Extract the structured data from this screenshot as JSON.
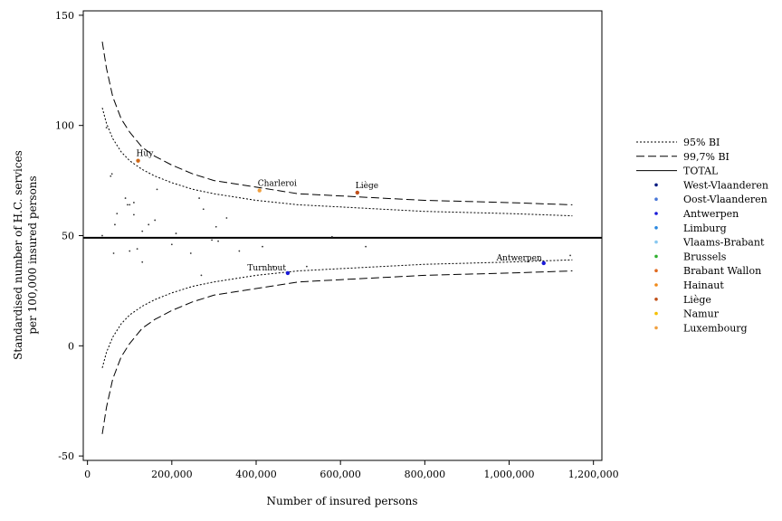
{
  "chart_data": {
    "type": "scatter",
    "title": "",
    "xlabel": "Number of insured persons",
    "ylabel_lines": [
      "Standardised number of H.C. services",
      "per 100,000 insured persons"
    ],
    "xlim": [
      -10000,
      1220000
    ],
    "ylim": [
      -52,
      152
    ],
    "xticks": [
      0,
      200000,
      400000,
      600000,
      800000,
      1000000,
      1200000
    ],
    "xtick_labels": [
      "0",
      "200,000",
      "400,000",
      "600,000",
      "800,000",
      "1,000,000",
      "1,200,000"
    ],
    "yticks": [
      -50,
      0,
      50,
      100,
      150
    ],
    "ytick_labels": [
      "-50",
      "0",
      "50",
      "100",
      "150"
    ],
    "grid": false,
    "legend_position": "right",
    "total_value": 49,
    "funnel_curves": [
      {
        "name": "95% BI",
        "style": "dotted",
        "x": [
          35000,
          45000,
          60000,
          80000,
          100000,
          130000,
          160000,
          200000,
          250000,
          300000,
          400000,
          500000,
          600000,
          700000,
          800000,
          900000,
          1000000,
          1150000
        ],
        "upper": [
          108,
          101,
          94,
          88,
          84,
          80,
          77,
          74,
          71,
          69,
          66,
          64,
          63,
          62,
          61,
          60.5,
          60,
          59
        ],
        "lower": [
          -10,
          -3,
          4,
          10,
          14,
          18,
          21,
          24,
          27,
          29,
          32,
          34,
          35,
          36,
          37,
          37.5,
          38,
          39
        ]
      },
      {
        "name": "99,7% BI",
        "style": "dashed",
        "x": [
          35000,
          45000,
          60000,
          80000,
          100000,
          130000,
          160000,
          200000,
          250000,
          300000,
          400000,
          500000,
          600000,
          700000,
          800000,
          900000,
          1000000,
          1150000
        ],
        "upper": [
          138,
          126,
          113,
          103,
          97,
          90,
          86,
          82,
          78,
          75,
          72,
          69,
          68,
          67,
          66,
          65.5,
          65,
          64
        ],
        "lower": [
          -40,
          -28,
          -15,
          -5,
          1,
          8,
          12,
          16,
          20,
          23,
          26,
          29,
          30,
          31,
          32,
          32.5,
          33,
          34
        ]
      }
    ],
    "series": [
      {
        "name": "West-Vlaanderen",
        "color": "#001a80"
      },
      {
        "name": "Oost-Vlaanderen",
        "color": "#4a78d8"
      },
      {
        "name": "Antwerpen",
        "color": "#1a1ad8"
      },
      {
        "name": "Limburg",
        "color": "#2a88e0"
      },
      {
        "name": "Vlaams-Brabant",
        "color": "#88c8f0"
      },
      {
        "name": "Brussels",
        "color": "#30b030"
      },
      {
        "name": "Brabant Wallon",
        "color": "#e06a20"
      },
      {
        "name": "Hainaut",
        "color": "#f08a1a"
      },
      {
        "name": "Liège",
        "color": "#c0501a"
      },
      {
        "name": "Namur",
        "color": "#f5c000"
      },
      {
        "name": "Luxembourg",
        "color": "#f0a040"
      }
    ],
    "highlighted_points": [
      {
        "label": "Huy",
        "x": 120000,
        "y": 84,
        "color": "#d06a1a",
        "label_side": "above"
      },
      {
        "label": "Charleroi",
        "x": 408000,
        "y": 70.5,
        "color": "#f0a040",
        "label_side": "above"
      },
      {
        "label": "Liège",
        "x": 640000,
        "y": 69.5,
        "color": "#c0501a",
        "label_side": "above"
      },
      {
        "label": "Turnhout",
        "x": 475000,
        "y": 33,
        "color": "#1a1ad8",
        "label_side": "left"
      },
      {
        "label": "Antwerpen",
        "x": 1082000,
        "y": 37.5,
        "color": "#1a1ad8",
        "label_side": "left"
      }
    ],
    "background_points": [
      {
        "x": 45000,
        "y": 99
      },
      {
        "x": 55000,
        "y": 77
      },
      {
        "x": 58000,
        "y": 78
      },
      {
        "x": 65000,
        "y": 55
      },
      {
        "x": 70000,
        "y": 60
      },
      {
        "x": 90000,
        "y": 67
      },
      {
        "x": 95000,
        "y": 64
      },
      {
        "x": 100000,
        "y": 64
      },
      {
        "x": 110000,
        "y": 65
      },
      {
        "x": 110000,
        "y": 59.5
      },
      {
        "x": 130000,
        "y": 52
      },
      {
        "x": 145000,
        "y": 55
      },
      {
        "x": 160000,
        "y": 57
      },
      {
        "x": 165000,
        "y": 71
      },
      {
        "x": 210000,
        "y": 51
      },
      {
        "x": 265000,
        "y": 67
      },
      {
        "x": 275000,
        "y": 62
      },
      {
        "x": 305000,
        "y": 54
      },
      {
        "x": 330000,
        "y": 58
      },
      {
        "x": 580000,
        "y": 49.5
      },
      {
        "x": 35000,
        "y": 50
      },
      {
        "x": 62000,
        "y": 42
      },
      {
        "x": 100000,
        "y": 43
      },
      {
        "x": 118000,
        "y": 44
      },
      {
        "x": 130000,
        "y": 38
      },
      {
        "x": 200000,
        "y": 46
      },
      {
        "x": 245000,
        "y": 42
      },
      {
        "x": 270000,
        "y": 32
      },
      {
        "x": 295000,
        "y": 48
      },
      {
        "x": 310000,
        "y": 47.5
      },
      {
        "x": 360000,
        "y": 43
      },
      {
        "x": 415000,
        "y": 45
      },
      {
        "x": 440000,
        "y": 36
      },
      {
        "x": 520000,
        "y": 36
      },
      {
        "x": 660000,
        "y": 45
      },
      {
        "x": 1145000,
        "y": 41
      }
    ],
    "legend": [
      {
        "label": "95% BI",
        "kind": "dotted"
      },
      {
        "label": "99,7% BI",
        "kind": "dashed"
      },
      {
        "label": "TOTAL",
        "kind": "solid"
      },
      {
        "label": "West-Vlaanderen",
        "kind": "dot",
        "color": "#001a80"
      },
      {
        "label": "Oost-Vlaanderen",
        "kind": "dot",
        "color": "#4a78d8"
      },
      {
        "label": "Antwerpen",
        "kind": "dot",
        "color": "#1a1ad8"
      },
      {
        "label": "Limburg",
        "kind": "dot",
        "color": "#2a88e0"
      },
      {
        "label": "Vlaams-Brabant",
        "kind": "dot",
        "color": "#88c8f0"
      },
      {
        "label": "Brussels",
        "kind": "dot",
        "color": "#30b030"
      },
      {
        "label": "Brabant Wallon",
        "kind": "dot",
        "color": "#e06a20"
      },
      {
        "label": "Hainaut",
        "kind": "dot",
        "color": "#f08a1a"
      },
      {
        "label": "Liège",
        "kind": "dot",
        "color": "#c0501a"
      },
      {
        "label": "Namur",
        "kind": "dot",
        "color": "#f5c000"
      },
      {
        "label": "Luxembourg",
        "kind": "dot",
        "color": "#f0a040"
      }
    ]
  }
}
